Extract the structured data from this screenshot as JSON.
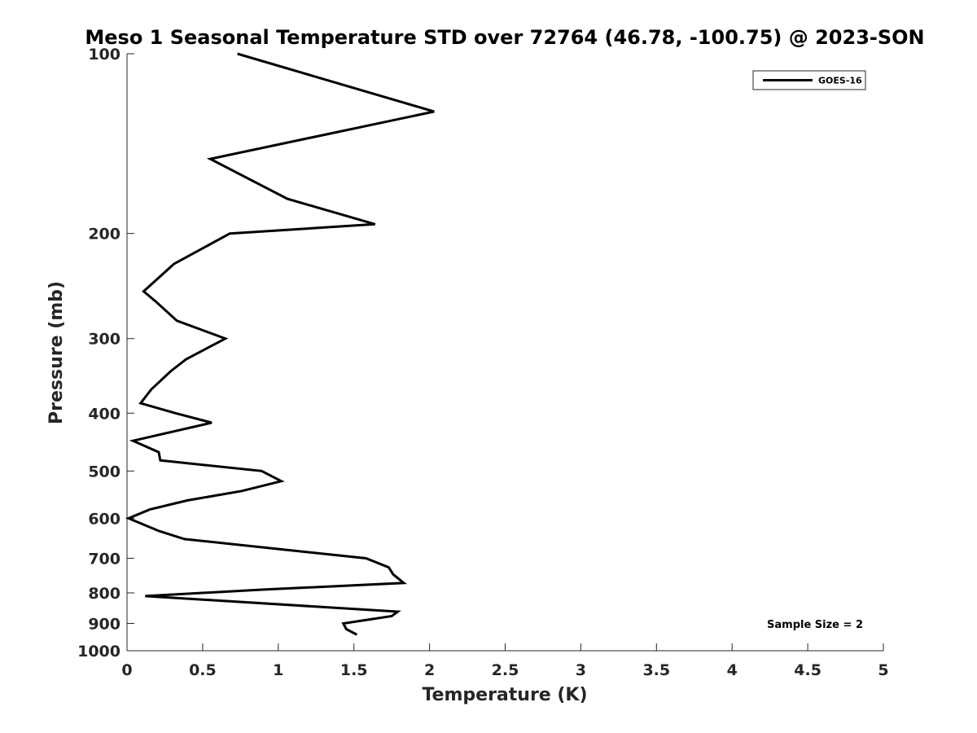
{
  "chart_data": {
    "type": "line",
    "title": "Meso 1 Seasonal Temperature STD over 72764 (46.78, -100.75) @ 2023-SON",
    "xlabel": "Temperature (K)",
    "ylabel": "Pressure (mb)",
    "xlim": [
      0,
      5
    ],
    "ylim": [
      100,
      1000
    ],
    "y_scale": "log",
    "y_reversed": true,
    "xticks": [
      0,
      0.5,
      1,
      1.5,
      2,
      2.5,
      3,
      3.5,
      4,
      4.5,
      5
    ],
    "xtick_labels": [
      "0",
      "0.5",
      "1",
      "1.5",
      "2",
      "2.5",
      "3",
      "3.5",
      "4",
      "4.5",
      "5"
    ],
    "yticks": [
      100,
      200,
      300,
      400,
      500,
      600,
      700,
      800,
      900,
      1000
    ],
    "ytick_labels": [
      "100",
      "200",
      "300",
      "400",
      "500",
      "600",
      "700",
      "800",
      "900",
      "1000"
    ],
    "grid": false,
    "legend_position": "top-right",
    "series": [
      {
        "name": "GOES-16",
        "color": "#000000",
        "temperature": [
          0.73,
          2.03,
          0.55,
          1.06,
          1.64,
          0.68,
          0.31,
          0.11,
          0.19,
          0.33,
          0.65,
          0.39,
          0.29,
          0.16,
          0.09,
          0.32,
          0.56,
          0.04,
          0.21,
          0.22,
          0.89,
          1.02,
          0.76,
          0.4,
          0.15,
          0.01,
          0.21,
          0.38,
          1.58,
          1.73,
          1.76,
          1.83,
          0.89,
          0.12,
          1.79,
          1.75,
          1.43,
          1.45,
          1.52
        ],
        "pressure": [
          100,
          125,
          150,
          175,
          193,
          200,
          225,
          250,
          260,
          280,
          300,
          325,
          340,
          365,
          385,
          400,
          415,
          445,
          465,
          480,
          500,
          520,
          540,
          560,
          580,
          600,
          630,
          650,
          700,
          725,
          745,
          770,
          790,
          810,
          860,
          875,
          900,
          920,
          940
        ]
      }
    ],
    "annotations": [
      "Sample Size = 2"
    ]
  }
}
